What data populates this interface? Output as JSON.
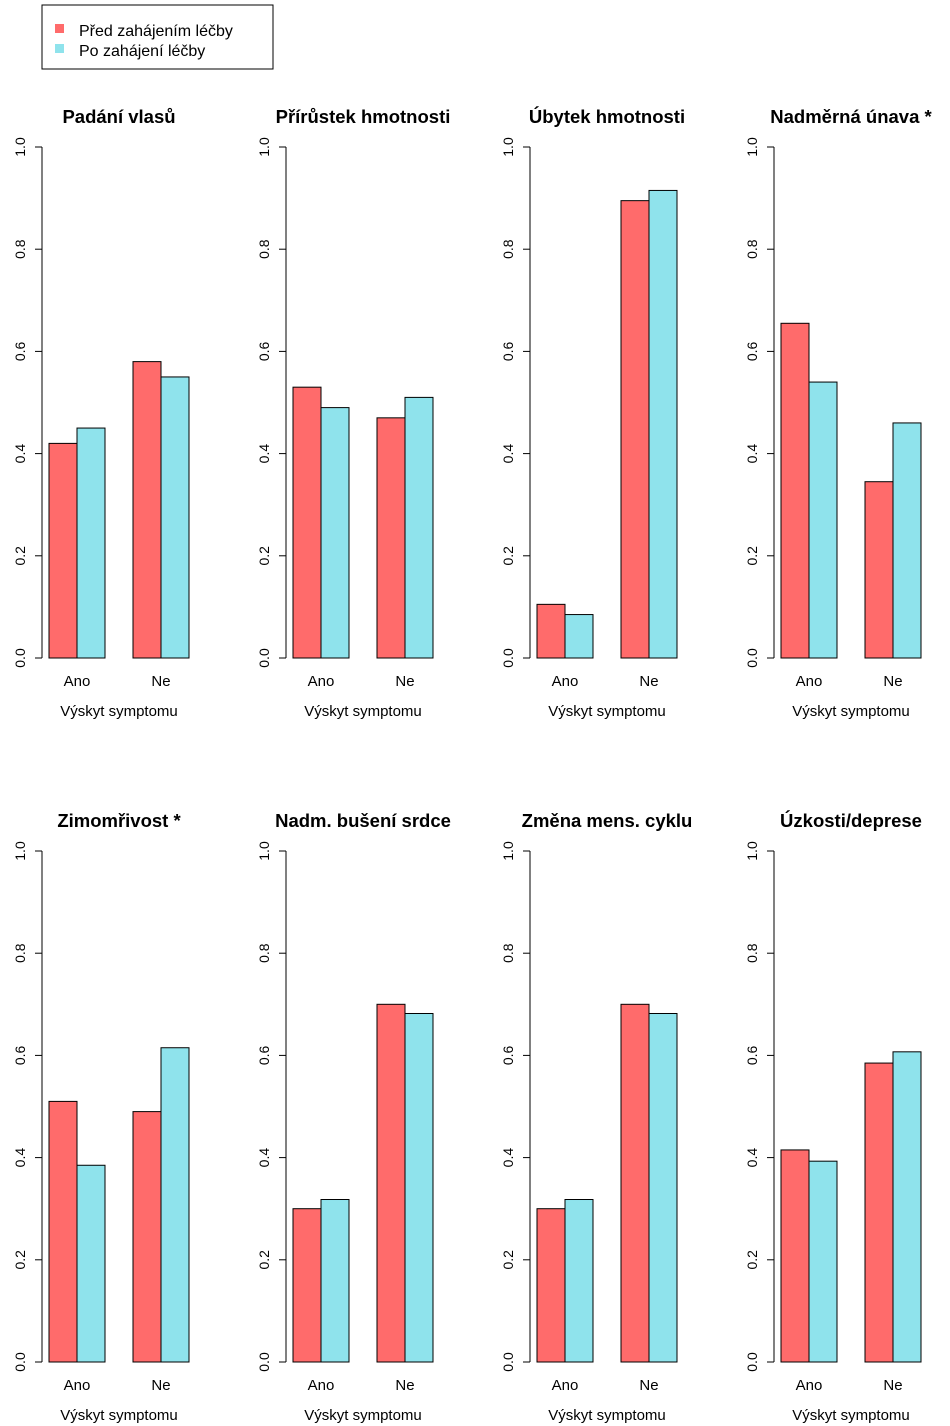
{
  "legend": {
    "items": [
      {
        "label": "Před zahájením léčby",
        "color": "#ff6b6b"
      },
      {
        "label": "Po zahájení léčby",
        "color": "#8fe3ec"
      }
    ]
  },
  "chart_data": [
    {
      "type": "bar",
      "title": "Padání vlasů",
      "categories": [
        "Ano",
        "Ne"
      ],
      "xlabel": "Výskyt symptomu",
      "ylabel": "",
      "ylim": [
        0,
        1
      ],
      "yticks": [
        "0.0",
        "0.2",
        "0.4",
        "0.6",
        "0.8",
        "1.0"
      ],
      "series": [
        {
          "name": "Před zahájením léčby",
          "values": [
            0.42,
            0.58
          ]
        },
        {
          "name": "Po zahájení léčby",
          "values": [
            0.45,
            0.55
          ]
        }
      ]
    },
    {
      "type": "bar",
      "title": "Přírůstek hmotnosti",
      "categories": [
        "Ano",
        "Ne"
      ],
      "xlabel": "Výskyt symptomu",
      "ylabel": "",
      "ylim": [
        0,
        1
      ],
      "yticks": [
        "0.0",
        "0.2",
        "0.4",
        "0.6",
        "0.8",
        "1.0"
      ],
      "series": [
        {
          "name": "Před zahájením léčby",
          "values": [
            0.53,
            0.47
          ]
        },
        {
          "name": "Po zahájení léčby",
          "values": [
            0.49,
            0.51
          ]
        }
      ]
    },
    {
      "type": "bar",
      "title": "Úbytek hmotnosti",
      "categories": [
        "Ano",
        "Ne"
      ],
      "xlabel": "Výskyt symptomu",
      "ylabel": "",
      "ylim": [
        0,
        1
      ],
      "yticks": [
        "0.0",
        "0.2",
        "0.4",
        "0.6",
        "0.8",
        "1.0"
      ],
      "series": [
        {
          "name": "Před zahájením léčby",
          "values": [
            0.105,
            0.895
          ]
        },
        {
          "name": "Po zahájení léčby",
          "values": [
            0.085,
            0.915
          ]
        }
      ]
    },
    {
      "type": "bar",
      "title": "Nadměrná únava *",
      "categories": [
        "Ano",
        "Ne"
      ],
      "xlabel": "Výskyt symptomu",
      "ylabel": "",
      "ylim": [
        0,
        1
      ],
      "yticks": [
        "0.0",
        "0.2",
        "0.4",
        "0.6",
        "0.8",
        "1.0"
      ],
      "series": [
        {
          "name": "Před zahájením léčby",
          "values": [
            0.655,
            0.345
          ]
        },
        {
          "name": "Po zahájení léčby",
          "values": [
            0.54,
            0.46
          ]
        }
      ]
    },
    {
      "type": "bar",
      "title": "Zimomřivost *",
      "categories": [
        "Ano",
        "Ne"
      ],
      "xlabel": "Výskyt symptomu",
      "ylabel": "",
      "ylim": [
        0,
        1
      ],
      "yticks": [
        "0.0",
        "0.2",
        "0.4",
        "0.6",
        "0.8",
        "1.0"
      ],
      "series": [
        {
          "name": "Před zahájením léčby",
          "values": [
            0.51,
            0.49
          ]
        },
        {
          "name": "Po zahájení léčby",
          "values": [
            0.385,
            0.615
          ]
        }
      ]
    },
    {
      "type": "bar",
      "title": "Nadm. bušení srdce",
      "categories": [
        "Ano",
        "Ne"
      ],
      "xlabel": "Výskyt symptomu",
      "ylabel": "",
      "ylim": [
        0,
        1
      ],
      "yticks": [
        "0.0",
        "0.2",
        "0.4",
        "0.6",
        "0.8",
        "1.0"
      ],
      "series": [
        {
          "name": "Před zahájením léčby",
          "values": [
            0.3,
            0.7
          ]
        },
        {
          "name": "Po zahájení léčby",
          "values": [
            0.318,
            0.682
          ]
        }
      ]
    },
    {
      "type": "bar",
      "title": "Změna mens. cyklu",
      "categories": [
        "Ano",
        "Ne"
      ],
      "xlabel": "Výskyt symptomu",
      "ylabel": "",
      "ylim": [
        0,
        1
      ],
      "yticks": [
        "0.0",
        "0.2",
        "0.4",
        "0.6",
        "0.8",
        "1.0"
      ],
      "series": [
        {
          "name": "Před zahájením léčby",
          "values": [
            0.3,
            0.7
          ]
        },
        {
          "name": "Po zahájení léčby",
          "values": [
            0.318,
            0.682
          ]
        }
      ]
    },
    {
      "type": "bar",
      "title": "Úzkosti/deprese",
      "categories": [
        "Ano",
        "Ne"
      ],
      "xlabel": "Výskyt symptomu",
      "ylabel": "",
      "ylim": [
        0,
        1
      ],
      "yticks": [
        "0.0",
        "0.2",
        "0.4",
        "0.6",
        "0.8",
        "1.0"
      ],
      "series": [
        {
          "name": "Před zahájením léčby",
          "values": [
            0.415,
            0.585
          ]
        },
        {
          "name": "Po zahájení léčby",
          "values": [
            0.393,
            0.607
          ]
        }
      ]
    }
  ]
}
